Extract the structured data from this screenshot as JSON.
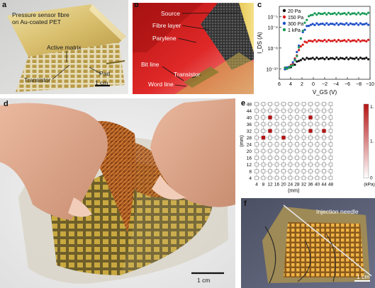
{
  "panel_a": {
    "label": "a",
    "annotations": {
      "fibre": "Pressure sensor fibre",
      "fibre2": "on Au-coated PET",
      "active": "Active matrix",
      "pad": "Pad",
      "transistor": "Transistor",
      "scale": "1 cm"
    }
  },
  "panel_b": {
    "label": "b",
    "annotations": {
      "source": "Source",
      "fibre_layer": "Fibre layer",
      "parylene": "Parylene",
      "bit_line": "Bit line",
      "transistor": "Transistor",
      "word_line": "Word line"
    }
  },
  "panel_d": {
    "label": "d",
    "scale": "1 cm"
  },
  "panel_f": {
    "label": "f",
    "needle": "Injection needle",
    "scale": "1 cm"
  },
  "chart_data": [
    {
      "panel": "c",
      "type": "scatter",
      "xlabel": "V_GS (V)",
      "ylabel": "I_DS (A)",
      "xlim": [
        6,
        -10
      ],
      "ylim": [
        1e-11,
        0.0001
      ],
      "log_y": true,
      "x_ticks": [
        "6",
        "4",
        "2",
        "0",
        "−2",
        "−4",
        "−6",
        "−8",
        "−10"
      ],
      "y_ticks": [
        "10⁻¹⁰",
        "10⁻⁸",
        "10⁻⁶",
        "10⁻⁵"
      ],
      "legend_position": "top-left",
      "series": [
        {
          "name": "20 Pa",
          "color": "#111111",
          "plateau": 1e-09
        },
        {
          "name": "150 Pa",
          "color": "#d81b1b",
          "plateau": 5e-08
        },
        {
          "name": "300 Pa",
          "color": "#1f4fc9",
          "plateau": 2e-06
        },
        {
          "name": "1 kPa",
          "color": "#1a9a57",
          "plateau": 2e-05
        }
      ]
    },
    {
      "panel": "e",
      "type": "heatmap",
      "xlabel": "(mm)",
      "ylabel": "(mm)",
      "x_ticks": [
        "4",
        "8",
        "12",
        "16",
        "20",
        "24",
        "28",
        "32",
        "36",
        "40",
        "44",
        "48"
      ],
      "y_ticks": [
        "48",
        "44",
        "40",
        "36",
        "32",
        "28",
        "24",
        "20",
        "16",
        "12",
        "8",
        "4"
      ],
      "colorbar_ticks": [
        "1.",
        "1.",
        "0"
      ],
      "colorbar_unit": "(kPa)",
      "active_points": [
        {
          "x": 12,
          "y": 40
        },
        {
          "x": 36,
          "y": 40
        },
        {
          "x": 12,
          "y": 32
        },
        {
          "x": 36,
          "y": 32
        },
        {
          "x": 44,
          "y": 32
        },
        {
          "x": 8,
          "y": 28
        },
        {
          "x": 20,
          "y": 28
        }
      ]
    }
  ]
}
